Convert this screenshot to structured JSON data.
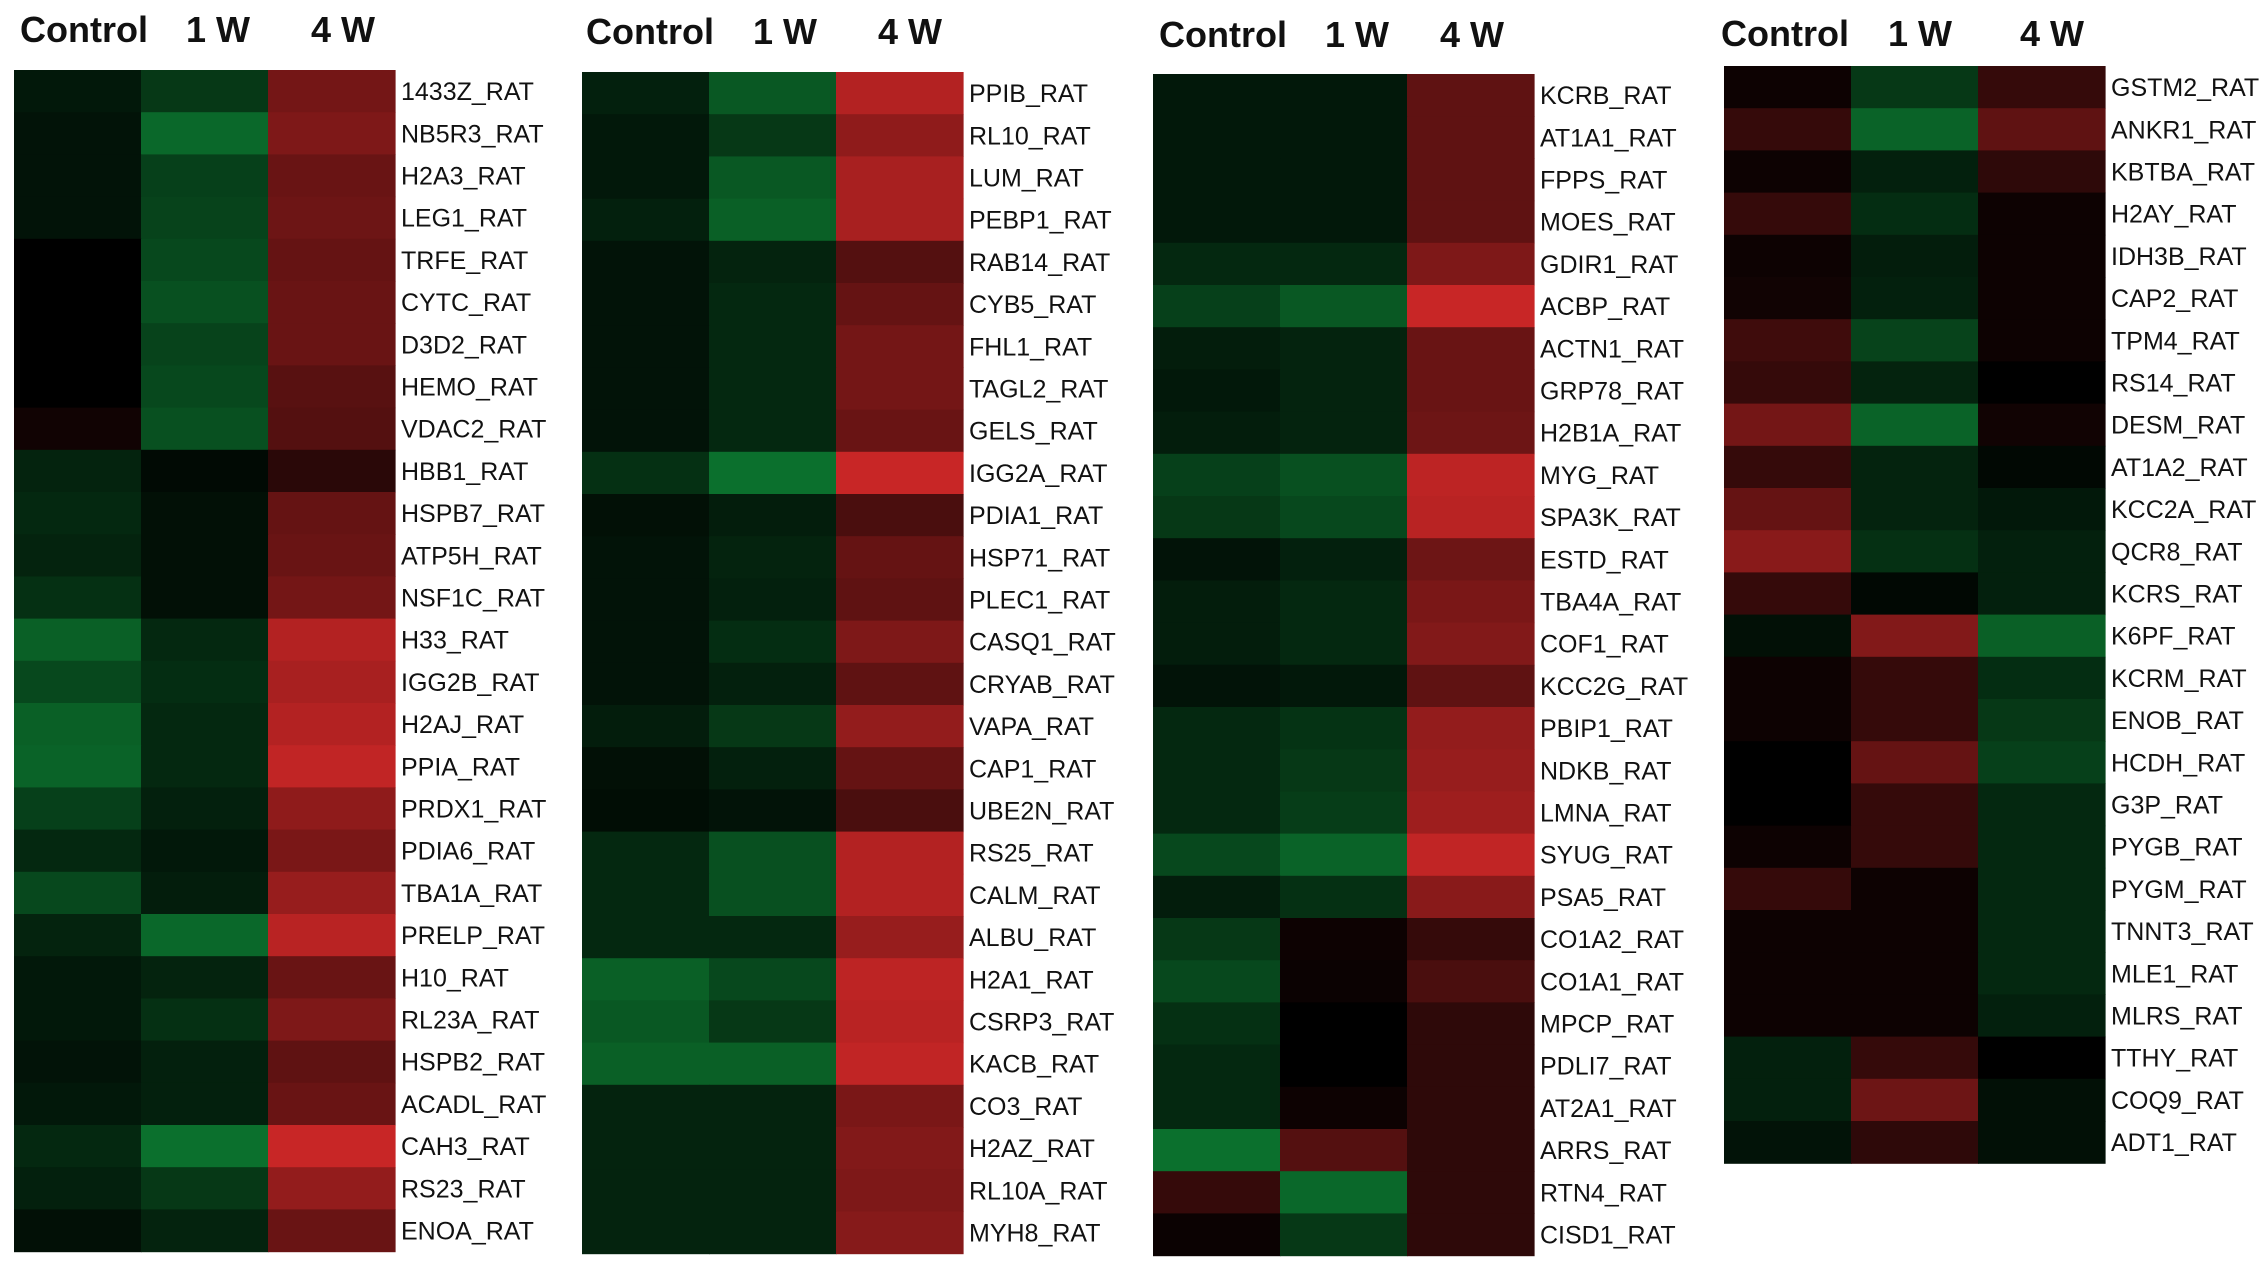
{
  "chart_data": {
    "type": "heatmap",
    "color_scale": {
      "low": "#10a040",
      "mid": "#000000",
      "high": "#d22828",
      "range": [
        -1,
        1
      ]
    },
    "panels": [
      {
        "columns": [
          "Control",
          "1 W",
          "4 W"
        ],
        "rows": [
          {
            "label": "1433Z_RAT",
            "values": [
              -0.15,
              -0.35,
              0.55
            ]
          },
          {
            "label": "NB5R3_RAT",
            "values": [
              -0.12,
              -0.65,
              0.6
            ]
          },
          {
            "label": "H2A3_RAT",
            "values": [
              -0.12,
              -0.4,
              0.5
            ]
          },
          {
            "label": "LEG1_RAT",
            "values": [
              -0.12,
              -0.42,
              0.52
            ]
          },
          {
            "label": "TRFE_RAT",
            "values": [
              0.0,
              -0.45,
              0.48
            ]
          },
          {
            "label": "CYTC_RAT",
            "values": [
              0.0,
              -0.5,
              0.5
            ]
          },
          {
            "label": "D3D2_RAT",
            "values": [
              0.0,
              -0.42,
              0.5
            ]
          },
          {
            "label": "HEMO_RAT",
            "values": [
              0.0,
              -0.45,
              0.42
            ]
          },
          {
            "label": "VDAC2_RAT",
            "values": [
              0.08,
              -0.5,
              0.4
            ]
          },
          {
            "label": "HBB1_RAT",
            "values": [
              -0.22,
              -0.06,
              0.2
            ]
          },
          {
            "label": "HSPB7_RAT",
            "values": [
              -0.25,
              -0.1,
              0.48
            ]
          },
          {
            "label": "ATP5H_RAT",
            "values": [
              -0.22,
              -0.1,
              0.5
            ]
          },
          {
            "label": "NSF1C_RAT",
            "values": [
              -0.3,
              -0.1,
              0.55
            ]
          },
          {
            "label": "H33_RAT",
            "values": [
              -0.6,
              -0.25,
              0.85
            ]
          },
          {
            "label": "IGG2B_RAT",
            "values": [
              -0.45,
              -0.28,
              0.8
            ]
          },
          {
            "label": "H2AJ_RAT",
            "values": [
              -0.6,
              -0.25,
              0.85
            ]
          },
          {
            "label": "PPIA_RAT",
            "values": [
              -0.62,
              -0.25,
              0.92
            ]
          },
          {
            "label": "PRDX1_RAT",
            "values": [
              -0.4,
              -0.2,
              0.68
            ]
          },
          {
            "label": "PDIA6_RAT",
            "values": [
              -0.25,
              -0.15,
              0.58
            ]
          },
          {
            "label": "TBA1A_RAT",
            "values": [
              -0.45,
              -0.18,
              0.72
            ]
          },
          {
            "label": "PRELP_RAT",
            "values": [
              -0.22,
              -0.65,
              0.88
            ]
          },
          {
            "label": "H10_RAT",
            "values": [
              -0.15,
              -0.22,
              0.5
            ]
          },
          {
            "label": "RL23A_RAT",
            "values": [
              -0.15,
              -0.3,
              0.6
            ]
          },
          {
            "label": "HSPB2_RAT",
            "values": [
              -0.12,
              -0.2,
              0.45
            ]
          },
          {
            "label": "ACADL_RAT",
            "values": [
              -0.15,
              -0.2,
              0.5
            ]
          },
          {
            "label": "CAH3_RAT",
            "values": [
              -0.25,
              -0.7,
              0.95
            ]
          },
          {
            "label": "RS23_RAT",
            "values": [
              -0.2,
              -0.35,
              0.7
            ]
          },
          {
            "label": "ENOA_RAT",
            "values": [
              -0.1,
              -0.22,
              0.5
            ]
          }
        ]
      },
      {
        "columns": [
          "Control",
          "1 W",
          "4 W"
        ],
        "rows": [
          {
            "label": "PPIB_RAT",
            "values": [
              -0.2,
              -0.55,
              0.85
            ]
          },
          {
            "label": "RL10_RAT",
            "values": [
              -0.15,
              -0.35,
              0.68
            ]
          },
          {
            "label": "LUM_RAT",
            "values": [
              -0.15,
              -0.55,
              0.8
            ]
          },
          {
            "label": "PEBP1_RAT",
            "values": [
              -0.2,
              -0.6,
              0.8
            ]
          },
          {
            "label": "RAB14_RAT",
            "values": [
              -0.12,
              -0.22,
              0.4
            ]
          },
          {
            "label": "CYB5_RAT",
            "values": [
              -0.12,
              -0.25,
              0.48
            ]
          },
          {
            "label": "FHL1_RAT",
            "values": [
              -0.12,
              -0.25,
              0.55
            ]
          },
          {
            "label": "TAGL2_RAT",
            "values": [
              -0.12,
              -0.25,
              0.55
            ]
          },
          {
            "label": "GELS_RAT",
            "values": [
              -0.12,
              -0.25,
              0.5
            ]
          },
          {
            "label": "IGG2A_RAT",
            "values": [
              -0.3,
              -0.7,
              0.95
            ]
          },
          {
            "label": "PDIA1_RAT",
            "values": [
              -0.1,
              -0.18,
              0.35
            ]
          },
          {
            "label": "HSP71_RAT",
            "values": [
              -0.12,
              -0.22,
              0.48
            ]
          },
          {
            "label": "PLEC1_RAT",
            "values": [
              -0.12,
              -0.2,
              0.45
            ]
          },
          {
            "label": "CASQ1_RAT",
            "values": [
              -0.12,
              -0.28,
              0.6
            ]
          },
          {
            "label": "CRYAB_RAT",
            "values": [
              -0.12,
              -0.2,
              0.45
            ]
          },
          {
            "label": "VAPA_RAT",
            "values": [
              -0.18,
              -0.35,
              0.7
            ]
          },
          {
            "label": "CAP1_RAT",
            "values": [
              -0.1,
              -0.2,
              0.48
            ]
          },
          {
            "label": "UBE2N_RAT",
            "values": [
              -0.08,
              -0.12,
              0.35
            ]
          },
          {
            "label": "RS25_RAT",
            "values": [
              -0.25,
              -0.5,
              0.85
            ]
          },
          {
            "label": "CALM_RAT",
            "values": [
              -0.25,
              -0.5,
              0.85
            ]
          },
          {
            "label": "ALBU_RAT",
            "values": [
              -0.25,
              -0.25,
              0.72
            ]
          },
          {
            "label": "H2A1_RAT",
            "values": [
              -0.6,
              -0.45,
              0.9
            ]
          },
          {
            "label": "CSRP3_RAT",
            "values": [
              -0.55,
              -0.35,
              0.88
            ]
          },
          {
            "label": "KACB_RAT",
            "values": [
              -0.6,
              -0.6,
              0.92
            ]
          },
          {
            "label": "CO3_RAT",
            "values": [
              -0.22,
              -0.22,
              0.58
            ]
          },
          {
            "label": "H2AZ_RAT",
            "values": [
              -0.22,
              -0.22,
              0.62
            ]
          },
          {
            "label": "RL10A_RAT",
            "values": [
              -0.22,
              -0.22,
              0.6
            ]
          },
          {
            "label": "MYH8_RAT",
            "values": [
              -0.22,
              -0.22,
              0.64
            ]
          }
        ]
      },
      {
        "columns": [
          "Control",
          "1 W",
          "4 W"
        ],
        "rows": [
          {
            "label": "KCRB_RAT",
            "values": [
              -0.15,
              -0.15,
              0.45
            ]
          },
          {
            "label": "AT1A1_RAT",
            "values": [
              -0.15,
              -0.15,
              0.45
            ]
          },
          {
            "label": "FPPS_RAT",
            "values": [
              -0.15,
              -0.15,
              0.45
            ]
          },
          {
            "label": "MOES_RAT",
            "values": [
              -0.15,
              -0.15,
              0.45
            ]
          },
          {
            "label": "GDIR1_RAT",
            "values": [
              -0.25,
              -0.25,
              0.6
            ]
          },
          {
            "label": "ACBP_RAT",
            "values": [
              -0.4,
              -0.55,
              0.95
            ]
          },
          {
            "label": "ACTN1_RAT",
            "values": [
              -0.18,
              -0.22,
              0.5
            ]
          },
          {
            "label": "GRP78_RAT",
            "values": [
              -0.15,
              -0.22,
              0.5
            ]
          },
          {
            "label": "H2B1A_RAT",
            "values": [
              -0.18,
              -0.22,
              0.52
            ]
          },
          {
            "label": "MYG_RAT",
            "values": [
              -0.4,
              -0.5,
              0.9
            ]
          },
          {
            "label": "SPA3K_RAT",
            "values": [
              -0.35,
              -0.45,
              0.88
            ]
          },
          {
            "label": "ESTD_RAT",
            "values": [
              -0.12,
              -0.2,
              0.52
            ]
          },
          {
            "label": "TBA4A_RAT",
            "values": [
              -0.18,
              -0.25,
              0.58
            ]
          },
          {
            "label": "COF1_RAT",
            "values": [
              -0.18,
              -0.25,
              0.62
            ]
          },
          {
            "label": "KCC2G_RAT",
            "values": [
              -0.12,
              -0.15,
              0.45
            ]
          },
          {
            "label": "PBIP1_RAT",
            "values": [
              -0.25,
              -0.32,
              0.7
            ]
          },
          {
            "label": "NDKB_RAT",
            "values": [
              -0.25,
              -0.35,
              0.72
            ]
          },
          {
            "label": "LMNA_RAT",
            "values": [
              -0.25,
              -0.38,
              0.75
            ]
          },
          {
            "label": "SYUG_RAT",
            "values": [
              -0.45,
              -0.62,
              0.92
            ]
          },
          {
            "label": "PSA5_RAT",
            "values": [
              -0.18,
              -0.3,
              0.65
            ]
          },
          {
            "label": "CO1A2_RAT",
            "values": [
              -0.35,
              0.06,
              0.25
            ]
          },
          {
            "label": "CO1A1_RAT",
            "values": [
              -0.45,
              0.05,
              0.35
            ]
          },
          {
            "label": "MPCP_RAT",
            "values": [
              -0.3,
              0.0,
              0.22
            ]
          },
          {
            "label": "PDLI7_RAT",
            "values": [
              -0.25,
              0.0,
              0.22
            ]
          },
          {
            "label": "AT2A1_RAT",
            "values": [
              -0.25,
              0.06,
              0.22
            ]
          },
          {
            "label": "ARRS_RAT",
            "values": [
              -0.7,
              0.4,
              0.22
            ]
          },
          {
            "label": "RTN4_RAT",
            "values": [
              0.25,
              -0.65,
              0.22
            ]
          },
          {
            "label": "CISD1_RAT",
            "values": [
              0.05,
              -0.35,
              0.22
            ]
          }
        ]
      },
      {
        "columns": [
          "Control",
          "1 W",
          "4 W"
        ],
        "rows": [
          {
            "label": "GSTM2_RAT",
            "values": [
              0.06,
              -0.35,
              0.25
            ]
          },
          {
            "label": "ANKR1_RAT",
            "values": [
              0.25,
              -0.62,
              0.45
            ]
          },
          {
            "label": "KBTBA_RAT",
            "values": [
              0.06,
              -0.2,
              0.22
            ]
          },
          {
            "label": "H2AY_RAT",
            "values": [
              0.25,
              -0.28,
              0.06
            ]
          },
          {
            "label": "IDH3B_RAT",
            "values": [
              0.06,
              -0.18,
              0.06
            ]
          },
          {
            "label": "CAP2_RAT",
            "values": [
              0.08,
              -0.2,
              0.06
            ]
          },
          {
            "label": "TPM4_RAT",
            "values": [
              0.3,
              -0.42,
              0.06
            ]
          },
          {
            "label": "RS14_RAT",
            "values": [
              0.25,
              -0.22,
              0.0
            ]
          },
          {
            "label": "DESM_RAT",
            "values": [
              0.55,
              -0.62,
              0.08
            ]
          },
          {
            "label": "AT1A2_RAT",
            "values": [
              0.25,
              -0.22,
              -0.05
            ]
          },
          {
            "label": "KCC2A_RAT",
            "values": [
              0.48,
              -0.22,
              -0.15
            ]
          },
          {
            "label": "QCR8_RAT",
            "values": [
              0.65,
              -0.3,
              -0.2
            ]
          },
          {
            "label": "KCRS_RAT",
            "values": [
              0.25,
              -0.05,
              -0.2
            ]
          },
          {
            "label": "K6PF_RAT",
            "values": [
              -0.1,
              0.62,
              -0.6
            ]
          },
          {
            "label": "KCRM_RAT",
            "values": [
              0.06,
              0.25,
              -0.28
            ]
          },
          {
            "label": "ENOB_RAT",
            "values": [
              0.06,
              0.25,
              -0.35
            ]
          },
          {
            "label": "HCDH_RAT",
            "values": [
              0.0,
              0.48,
              -0.4
            ]
          },
          {
            "label": "G3P_RAT",
            "values": [
              0.0,
              0.25,
              -0.25
            ]
          },
          {
            "label": "PYGB_RAT",
            "values": [
              0.06,
              0.25,
              -0.25
            ]
          },
          {
            "label": "PYGM_RAT",
            "values": [
              0.25,
              0.06,
              -0.25
            ]
          },
          {
            "label": "TNNT3_RAT",
            "values": [
              0.06,
              0.06,
              -0.25
            ]
          },
          {
            "label": "MLE1_RAT",
            "values": [
              0.06,
              0.06,
              -0.25
            ]
          },
          {
            "label": "MLRS_RAT",
            "values": [
              0.06,
              0.06,
              -0.2
            ]
          },
          {
            "label": "TTHY_RAT",
            "values": [
              -0.2,
              0.25,
              0.0
            ]
          },
          {
            "label": "COQ9_RAT",
            "values": [
              -0.2,
              0.52,
              -0.1
            ]
          },
          {
            "label": "ADT1_RAT",
            "values": [
              -0.12,
              0.22,
              -0.1
            ]
          }
        ]
      }
    ]
  }
}
